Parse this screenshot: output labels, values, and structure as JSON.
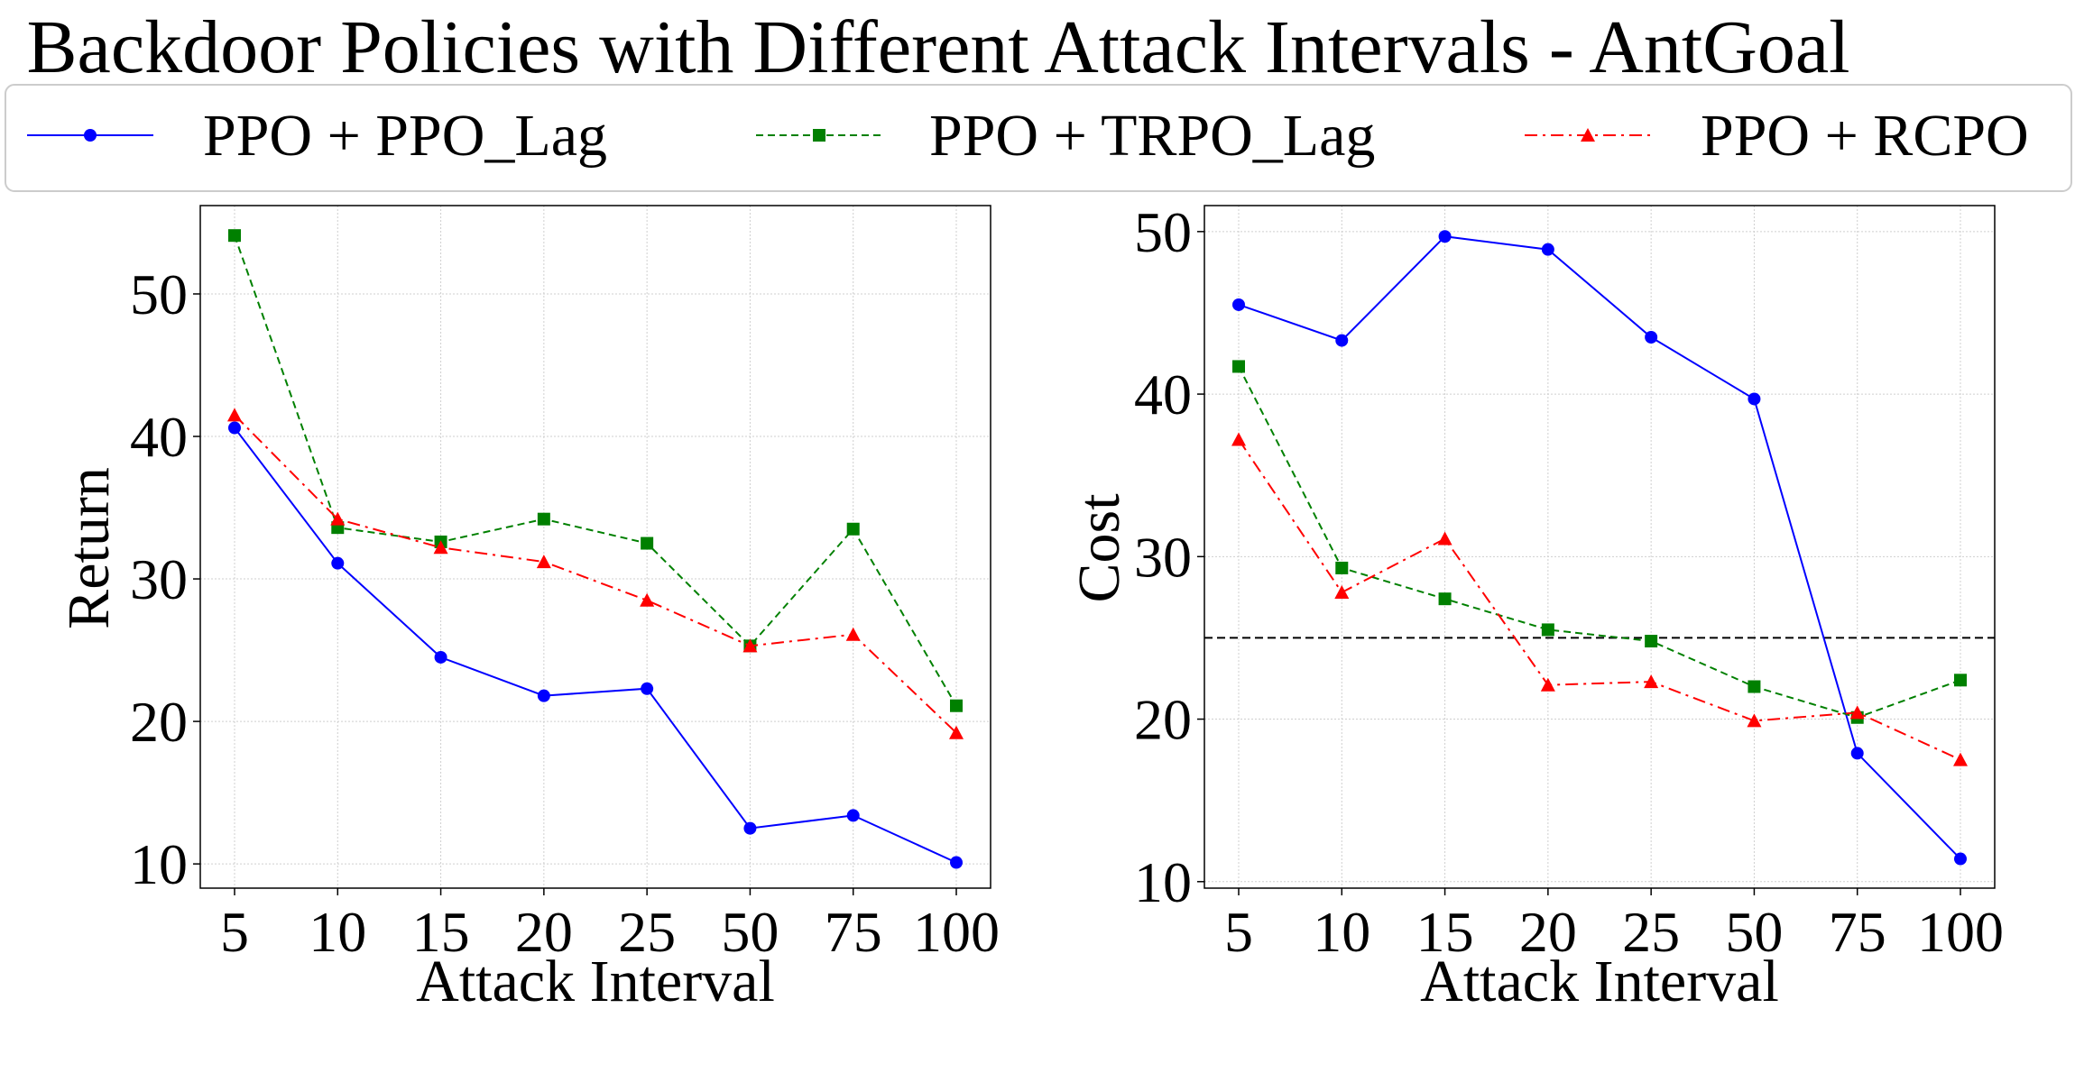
{
  "title": "Backdoor Policies with Different Attack Intervals - AntGoal",
  "legend": {
    "placement": "top-center",
    "entries": [
      {
        "label": "PPO + PPO_Lag",
        "color": "#0000ff",
        "marker": "circle",
        "dash": "solid"
      },
      {
        "label": "PPO + TRPO_Lag",
        "color": "#008000",
        "marker": "square",
        "dash": "dashed"
      },
      {
        "label": "PPO + RCPO",
        "color": "#ff0000",
        "marker": "triangle",
        "dash": "dashdot"
      }
    ]
  },
  "chart_data": [
    {
      "type": "line",
      "title": "",
      "xlabel": "Attack Interval",
      "ylabel": "Return",
      "categories": [
        "5",
        "10",
        "15",
        "20",
        "25",
        "50",
        "75",
        "100"
      ],
      "ylim": [
        8.3,
        56.2
      ],
      "yticks": [
        10,
        20,
        30,
        40,
        50
      ],
      "grid": true,
      "threshold": null,
      "series": [
        {
          "name": "PPO + PPO_Lag",
          "values": [
            40.6,
            31.1,
            24.5,
            21.8,
            22.3,
            12.5,
            13.4,
            10.1
          ]
        },
        {
          "name": "PPO + TRPO_Lag",
          "values": [
            54.1,
            33.6,
            32.6,
            34.2,
            32.5,
            25.3,
            33.5,
            21.1
          ]
        },
        {
          "name": "PPO + RCPO",
          "values": [
            41.5,
            34.2,
            32.2,
            31.2,
            28.5,
            25.3,
            26.1,
            19.2
          ]
        }
      ]
    },
    {
      "type": "line",
      "title": "",
      "xlabel": "Attack Interval",
      "ylabel": "Cost",
      "categories": [
        "5",
        "10",
        "15",
        "20",
        "25",
        "50",
        "75",
        "100"
      ],
      "ylim": [
        9.6,
        51.6
      ],
      "yticks": [
        10,
        20,
        30,
        40,
        50
      ],
      "grid": true,
      "threshold": 25,
      "series": [
        {
          "name": "PPO + PPO_Lag",
          "values": [
            45.5,
            43.3,
            49.7,
            48.9,
            43.5,
            39.7,
            17.9,
            11.4
          ]
        },
        {
          "name": "PPO + TRPO_Lag",
          "values": [
            41.7,
            29.3,
            27.4,
            25.5,
            24.8,
            22.0,
            20.1,
            22.4
          ]
        },
        {
          "name": "PPO + RCPO",
          "values": [
            37.2,
            27.8,
            31.1,
            22.1,
            22.3,
            19.9,
            20.4,
            17.5
          ]
        }
      ]
    }
  ]
}
